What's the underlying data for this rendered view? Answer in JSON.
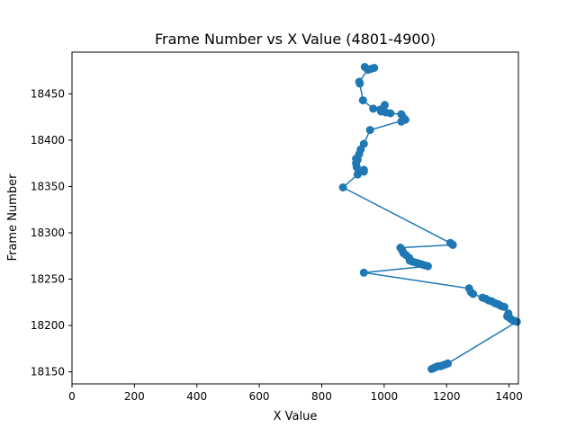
{
  "chart_data": {
    "type": "scatter",
    "title": "Frame Number vs X Value (4801-4900)",
    "xlabel": "X Value",
    "ylabel": "Frame Number",
    "xlim": [
      0,
      1430
    ],
    "ylim": [
      18137,
      18495
    ],
    "xticks": [
      0,
      200,
      400,
      600,
      800,
      1000,
      1200,
      1400
    ],
    "yticks": [
      18150,
      18200,
      18250,
      18300,
      18350,
      18400,
      18450
    ],
    "grid": false,
    "legend": "none",
    "colors": {
      "series": "#1f77b4",
      "axes": "#000000",
      "background": "#ffffff"
    },
    "series": [
      {
        "color": "#1f77b4",
        "marker": "circle",
        "connected": true,
        "points": [
          [
            1152,
            18153
          ],
          [
            1158,
            18154
          ],
          [
            1165,
            18155
          ],
          [
            1172,
            18156
          ],
          [
            1180,
            18156
          ],
          [
            1188,
            18157
          ],
          [
            1196,
            18158
          ],
          [
            1204,
            18159
          ],
          [
            1425,
            18204
          ],
          [
            1418,
            18205
          ],
          [
            1410,
            18206
          ],
          [
            1402,
            18208
          ],
          [
            1394,
            18210
          ],
          [
            1398,
            18213
          ],
          [
            1385,
            18220
          ],
          [
            1375,
            18221
          ],
          [
            1365,
            18223
          ],
          [
            1355,
            18224
          ],
          [
            1345,
            18226
          ],
          [
            1335,
            18227
          ],
          [
            1325,
            18229
          ],
          [
            1315,
            18230
          ],
          [
            1285,
            18234
          ],
          [
            1278,
            18236
          ],
          [
            1272,
            18240
          ],
          [
            935,
            18257
          ],
          [
            1140,
            18264
          ],
          [
            1130,
            18265
          ],
          [
            1120,
            18266
          ],
          [
            1110,
            18267
          ],
          [
            1100,
            18268
          ],
          [
            1090,
            18269
          ],
          [
            1082,
            18270
          ],
          [
            1080,
            18273
          ],
          [
            1070,
            18276
          ],
          [
            1062,
            18278
          ],
          [
            1058,
            18281
          ],
          [
            1052,
            18284
          ],
          [
            1220,
            18287
          ],
          [
            1212,
            18289
          ],
          [
            868,
            18349
          ],
          [
            915,
            18363
          ],
          [
            935,
            18366
          ],
          [
            918,
            18367
          ],
          [
            935,
            18368
          ],
          [
            912,
            18371
          ],
          [
            910,
            18375
          ],
          [
            915,
            18379
          ],
          [
            910,
            18380
          ],
          [
            920,
            18385
          ],
          [
            925,
            18390
          ],
          [
            935,
            18396
          ],
          [
            955,
            18411
          ],
          [
            1068,
            18422
          ],
          [
            1055,
            18420
          ],
          [
            1062,
            18424
          ],
          [
            1055,
            18428
          ],
          [
            1020,
            18429
          ],
          [
            1005,
            18430
          ],
          [
            990,
            18431
          ],
          [
            988,
            18433
          ],
          [
            1002,
            18438
          ],
          [
            965,
            18434
          ],
          [
            932,
            18443
          ],
          [
            922,
            18461
          ],
          [
            920,
            18463
          ],
          [
            948,
            18476
          ],
          [
            958,
            18477
          ],
          [
            968,
            18478
          ],
          [
            938,
            18479
          ]
        ]
      }
    ]
  }
}
